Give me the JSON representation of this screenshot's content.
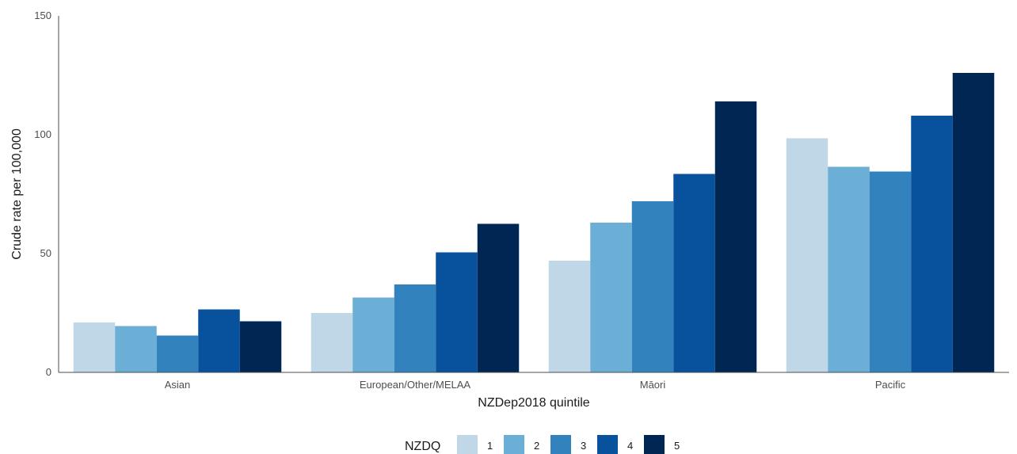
{
  "chart_data": {
    "type": "bar",
    "xlabel": "NZDep2018 quintile",
    "ylabel": "Crude rate per 100,000",
    "ylim": [
      0,
      150
    ],
    "yticks": [
      0,
      50,
      100,
      150
    ],
    "categories": [
      "Asian",
      "European/Other/MELAA",
      "Māori",
      "Pacific"
    ],
    "series": [
      {
        "name": "1",
        "color": "#c0d7e7",
        "values": [
          21,
          25,
          47,
          98.5
        ]
      },
      {
        "name": "2",
        "color": "#6baed6",
        "values": [
          19.5,
          31.5,
          63,
          86.5
        ]
      },
      {
        "name": "3",
        "color": "#3182bd",
        "values": [
          15.5,
          37,
          72,
          84.5
        ]
      },
      {
        "name": "4",
        "color": "#08519c",
        "values": [
          26.5,
          50.5,
          83.5,
          108
        ]
      },
      {
        "name": "5",
        "color": "#002654",
        "values": [
          21.5,
          62.5,
          114,
          126
        ]
      }
    ],
    "legend": {
      "title": "NZDQ",
      "position": "bottom"
    },
    "grid": false
  }
}
